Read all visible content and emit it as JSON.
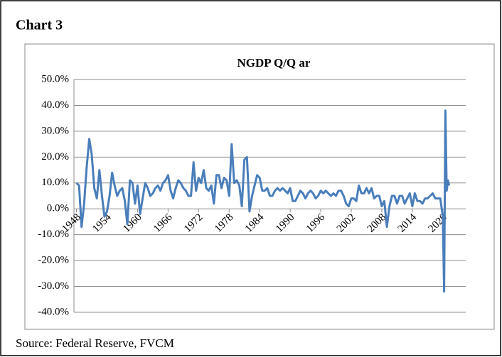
{
  "header": {
    "title": "Chart 3"
  },
  "chart_data": {
    "type": "line",
    "title": "NGDP Q/Q ar",
    "x": [
      1948.0,
      1948.5,
      1949.0,
      1949.5,
      1950.0,
      1950.5,
      1951.0,
      1951.5,
      1952.0,
      1952.5,
      1953.0,
      1953.5,
      1954.0,
      1954.5,
      1955.0,
      1955.5,
      1956.0,
      1956.5,
      1957.0,
      1957.5,
      1958.0,
      1958.5,
      1959.0,
      1959.5,
      1960.0,
      1960.5,
      1961.0,
      1961.5,
      1962.0,
      1962.5,
      1963.0,
      1963.5,
      1964.0,
      1964.5,
      1965.0,
      1965.5,
      1966.0,
      1966.5,
      1967.0,
      1967.5,
      1968.0,
      1968.5,
      1969.0,
      1969.5,
      1970.0,
      1970.5,
      1971.0,
      1971.5,
      1972.0,
      1972.5,
      1973.0,
      1973.5,
      1974.0,
      1974.5,
      1975.0,
      1975.5,
      1976.0,
      1976.5,
      1977.0,
      1977.5,
      1978.0,
      1978.5,
      1979.0,
      1979.5,
      1980.0,
      1980.5,
      1981.0,
      1981.5,
      1982.0,
      1982.5,
      1983.0,
      1983.5,
      1984.0,
      1984.5,
      1985.0,
      1985.5,
      1986.0,
      1986.5,
      1987.0,
      1987.5,
      1988.0,
      1988.5,
      1989.0,
      1989.5,
      1990.0,
      1990.5,
      1991.0,
      1991.5,
      1992.0,
      1992.5,
      1993.0,
      1993.5,
      1994.0,
      1994.5,
      1995.0,
      1995.5,
      1996.0,
      1996.5,
      1997.0,
      1997.5,
      1998.0,
      1998.5,
      1999.0,
      1999.5,
      2000.0,
      2000.5,
      2001.0,
      2001.5,
      2002.0,
      2002.5,
      2003.0,
      2003.5,
      2004.0,
      2004.5,
      2005.0,
      2005.5,
      2006.0,
      2006.5,
      2007.0,
      2007.5,
      2008.0,
      2008.5,
      2009.0,
      2009.5,
      2010.0,
      2010.5,
      2011.0,
      2011.5,
      2012.0,
      2012.5,
      2013.0,
      2013.5,
      2014.0,
      2014.5,
      2015.0,
      2015.5,
      2016.0,
      2016.5,
      2017.0,
      2017.5,
      2018.0,
      2018.5,
      2019.0,
      2019.5,
      2020.0,
      2020.25,
      2020.5,
      2020.75,
      2021.0,
      2021.25
    ],
    "series": [
      {
        "name": "NGDP Q/Q ar",
        "color": "#4a7ebb",
        "values": [
          10,
          9,
          -7,
          2,
          16,
          27,
          21,
          8,
          4,
          15,
          5,
          -3,
          -1,
          5,
          14,
          9,
          5,
          7,
          8,
          3,
          -6,
          11,
          10,
          2,
          9,
          -2,
          4,
          10,
          8,
          5,
          6,
          8,
          9,
          7,
          10,
          11,
          13,
          7,
          4,
          8,
          11,
          10,
          8,
          7,
          5,
          5,
          18,
          7,
          12,
          10,
          15,
          8,
          7,
          9,
          2,
          13,
          13,
          8,
          12,
          11,
          5,
          25,
          10,
          11,
          9,
          1,
          19,
          20,
          -1,
          5,
          9,
          13,
          12,
          7,
          7,
          8,
          5,
          5,
          7,
          8,
          7,
          8,
          7,
          6,
          8,
          3,
          3,
          5,
          7,
          6,
          4,
          6,
          7,
          6,
          4,
          5,
          7,
          6,
          7,
          6,
          5,
          6,
          5,
          7,
          7,
          5,
          2,
          1,
          4,
          4,
          3,
          9,
          6,
          6,
          8,
          6,
          8,
          4,
          5,
          5,
          1,
          3,
          -7,
          1,
          5,
          5,
          2,
          5,
          5,
          2,
          4,
          6,
          1,
          6,
          3,
          3,
          2,
          4,
          4,
          5,
          6,
          4,
          4,
          4,
          -3,
          -32,
          38,
          7,
          11,
          9
        ]
      }
    ],
    "xlim": [
      1947.5,
      2024.5
    ],
    "xticks": [
      1948,
      1954,
      1960,
      1966,
      1972,
      1978,
      1984,
      1990,
      1996,
      2002,
      2008,
      2014,
      2020
    ],
    "ylim": [
      -40,
      50
    ],
    "yticks": [
      {
        "value": -40,
        "label": "-40.0%"
      },
      {
        "value": -30,
        "label": "-30.0%"
      },
      {
        "value": -20,
        "label": "-20.0%"
      },
      {
        "value": -10,
        "label": "-10.0%"
      },
      {
        "value": 0,
        "label": "0.0%"
      },
      {
        "value": 10,
        "label": "10.0%"
      },
      {
        "value": 20,
        "label": "20.0%"
      },
      {
        "value": 30,
        "label": "30.0%"
      },
      {
        "value": 40,
        "label": "40.0%"
      },
      {
        "value": 50,
        "label": "50.0%"
      }
    ],
    "grid": true
  },
  "footer": {
    "source": "Source: Federal Reserve, FVCM"
  }
}
